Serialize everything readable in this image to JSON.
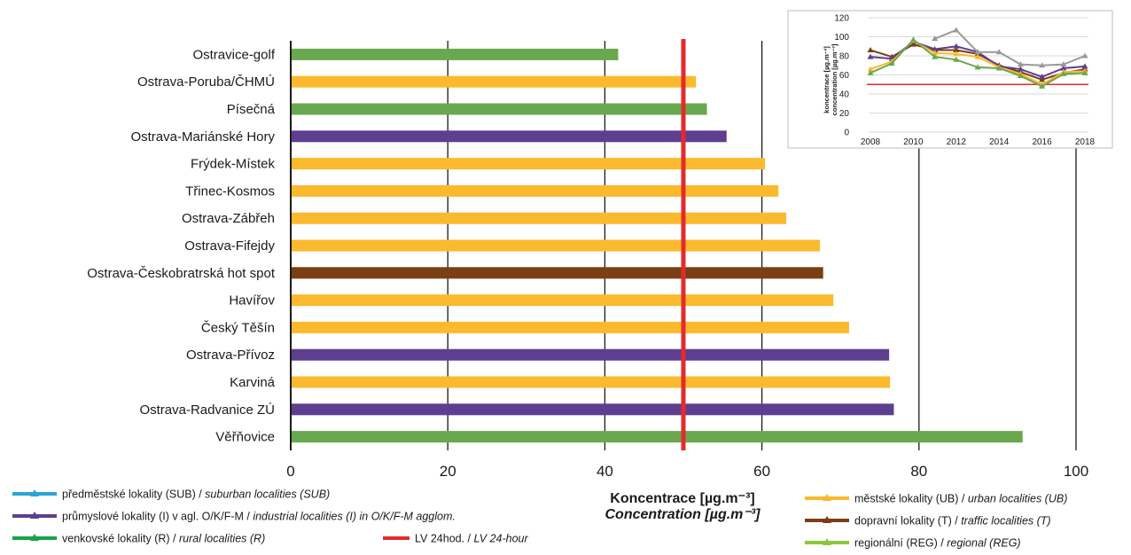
{
  "chart_data": [
    {
      "type": "bar",
      "orientation": "horizontal",
      "xlabel": "Koncentrace [µg.m⁻³]",
      "xlabel_en": "Concentration [µg.m⁻³]",
      "xlim": [
        0,
        100
      ],
      "xticks": [
        "0",
        "20",
        "40",
        "60",
        "80",
        "100"
      ],
      "grid": "vertical",
      "limit_value": 50,
      "categories": [
        "Ostravice-golf",
        "Ostrava-Poruba/ČHMÚ",
        "Písečná",
        "Ostrava-Mariánské Hory",
        "Frýdek-Místek",
        "Třinec-Kosmos",
        "Ostrava-Zábřeh",
        "Ostrava-Fifejdy",
        "Ostrava-Českobratrská hot spot",
        "Havířov",
        "Český Těšín",
        "Ostrava-Přívoz",
        "Karviná",
        "Ostrava-Radvanice ZÚ",
        "Věřňovice"
      ],
      "values": [
        41.7,
        51.6,
        53.0,
        55.5,
        60.4,
        62.1,
        63.1,
        67.4,
        67.8,
        69.1,
        71.1,
        76.2,
        76.3,
        76.8,
        93.2
      ],
      "bar_types": [
        "R",
        "UB",
        "R",
        "I",
        "UB",
        "UB",
        "UB",
        "UB",
        "T",
        "UB",
        "UB",
        "I",
        "UB",
        "I",
        "R"
      ]
    },
    {
      "type": "line",
      "x": [
        2008,
        2009,
        2010,
        2011,
        2012,
        2013,
        2014,
        2015,
        2016,
        2017,
        2018
      ],
      "xticks": [
        "2008",
        "2010",
        "2012",
        "2014",
        "2016",
        "2018"
      ],
      "ylim": [
        0,
        120
      ],
      "yticks": [
        "0",
        "20",
        "40",
        "60",
        "80",
        "100",
        "120"
      ],
      "ylabel": "koncentrace [µg.m⁻³]",
      "ylabel_en": "concentration [µg.m⁻³]",
      "limit_value": 50,
      "series": [
        {
          "key": "T",
          "values": [
            86,
            79,
            92,
            86,
            86,
            82,
            70,
            63,
            55,
            62,
            66
          ]
        },
        {
          "key": "I",
          "values": [
            79,
            77,
            95,
            87,
            90,
            84,
            69,
            66,
            58,
            67,
            69
          ]
        },
        {
          "key": "UB",
          "values": [
            66,
            74,
            96,
            83,
            82,
            79,
            68,
            61,
            50,
            63,
            64
          ]
        },
        {
          "key": "R",
          "values": [
            62,
            72,
            97,
            79,
            76,
            68,
            67,
            59,
            48,
            61,
            62
          ]
        },
        {
          "key": "REG",
          "values": [
            null,
            null,
            null,
            98,
            107,
            84,
            84,
            71,
            70,
            71,
            80
          ]
        }
      ]
    }
  ],
  "colors": {
    "SUB": "#2aa5d8",
    "I": "#5e3f8f",
    "R": "#6aa84f",
    "R_legend": "#19a04b",
    "UB": "#fbb92d",
    "T": "#7b3f14",
    "REG": "#999999",
    "REG_legend": "#8dc63f",
    "LV": "#e32b2b",
    "grid": "#1a1a1a"
  },
  "legend": {
    "left": [
      {
        "key": "SUB",
        "cz": "předměstské lokality (SUB)",
        "en": "suburban localities (SUB)"
      },
      {
        "key": "I",
        "cz": "průmyslové lokality (I) v agl. O/K/F-M",
        "en": "industrial localities (I) in O/K/F-M agglom."
      },
      {
        "key": "R",
        "cz": "venkovské lokality (R)",
        "en": "rural localities (R)"
      }
    ],
    "limit": {
      "key": "LV",
      "cz": "LV 24hod.",
      "en": "LV 24-hour"
    },
    "right": [
      {
        "key": "UB",
        "cz": "městské lokality (UB)",
        "en": "urban localities (UB)"
      },
      {
        "key": "T",
        "cz": "dopravní lokality (T)",
        "en": "traffic localities (T)"
      },
      {
        "key": "REG",
        "cz": "regionální (REG)",
        "en": "regional (REG)"
      }
    ]
  }
}
